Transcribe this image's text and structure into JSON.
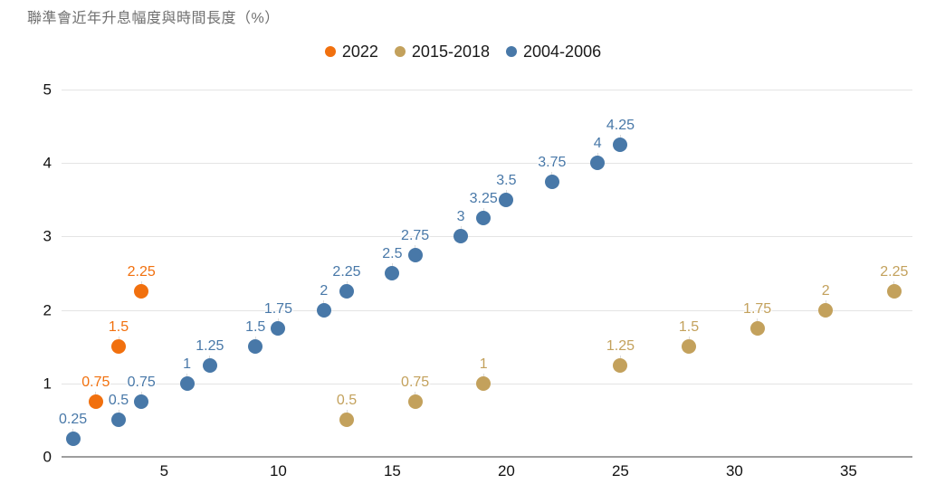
{
  "title": "聯準會近年升息幅度與時間長度（%）",
  "legend": [
    {
      "label": "2022",
      "color": "#f1700e"
    },
    {
      "label": "2015-2018",
      "color": "#c3a15c"
    },
    {
      "label": "2004-2006",
      "color": "#4878a8"
    }
  ],
  "chart_data": {
    "type": "scatter",
    "title": "聯準會近年升息幅度與時間長度（%）",
    "xlabel": "",
    "ylabel": "",
    "xlim": [
      0.5,
      37.8
    ],
    "ylim": [
      0,
      5
    ],
    "x_ticks": [
      "5",
      "10",
      "15",
      "20",
      "25",
      "30",
      "35"
    ],
    "x_tick_values": [
      5,
      10,
      15,
      20,
      25,
      30,
      35
    ],
    "y_ticks": [
      "0",
      "1",
      "2",
      "3",
      "4",
      "5"
    ],
    "y_tick_values": [
      0,
      1,
      2,
      3,
      4,
      5
    ],
    "grid": "horizontal-only",
    "legend_position": "top-center",
    "point_labels": "each point is annotated above with its y value",
    "series": [
      {
        "name": "2022",
        "color": "#f1700e",
        "points": [
          {
            "x": 2,
            "y": 0.75,
            "label": "0.75"
          },
          {
            "x": 3,
            "y": 1.5,
            "label": "1.5"
          },
          {
            "x": 4,
            "y": 2.25,
            "label": "2.25"
          }
        ]
      },
      {
        "name": "2015-2018",
        "color": "#c3a15c",
        "points": [
          {
            "x": 13,
            "y": 0.5,
            "label": "0.5"
          },
          {
            "x": 16,
            "y": 0.75,
            "label": "0.75"
          },
          {
            "x": 19,
            "y": 1,
            "label": "1"
          },
          {
            "x": 25,
            "y": 1.25,
            "label": "1.25"
          },
          {
            "x": 28,
            "y": 1.5,
            "label": "1.5"
          },
          {
            "x": 31,
            "y": 1.75,
            "label": "1.75"
          },
          {
            "x": 34,
            "y": 2,
            "label": "2"
          },
          {
            "x": 37,
            "y": 2.25,
            "label": "2.25"
          }
        ]
      },
      {
        "name": "2004-2006",
        "color": "#4878a8",
        "points": [
          {
            "x": 1,
            "y": 0.25,
            "label": "0.25"
          },
          {
            "x": 3,
            "y": 0.5,
            "label": "0.5"
          },
          {
            "x": 4,
            "y": 0.75,
            "label": "0.75"
          },
          {
            "x": 6,
            "y": 1,
            "label": "1"
          },
          {
            "x": 7,
            "y": 1.25,
            "label": "1.25"
          },
          {
            "x": 9,
            "y": 1.5,
            "label": "1.5"
          },
          {
            "x": 10,
            "y": 1.75,
            "label": "1.75"
          },
          {
            "x": 12,
            "y": 2,
            "label": "2"
          },
          {
            "x": 13,
            "y": 2.25,
            "label": "2.25"
          },
          {
            "x": 15,
            "y": 2.5,
            "label": "2.5"
          },
          {
            "x": 16,
            "y": 2.75,
            "label": "2.75"
          },
          {
            "x": 18,
            "y": 3,
            "label": "3"
          },
          {
            "x": 19,
            "y": 3.25,
            "label": "3.25"
          },
          {
            "x": 20,
            "y": 3.5,
            "label": "3.5"
          },
          {
            "x": 22,
            "y": 3.75,
            "label": "3.75"
          },
          {
            "x": 24,
            "y": 4,
            "label": "4"
          },
          {
            "x": 25,
            "y": 4.25,
            "label": "4.25"
          }
        ]
      }
    ]
  }
}
